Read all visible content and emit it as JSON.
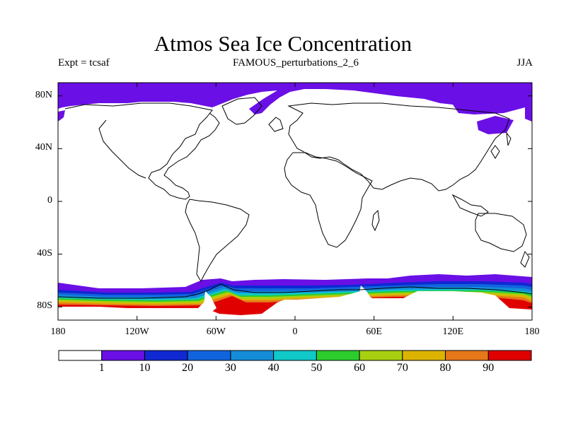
{
  "header": {
    "title": "Atmos Sea Ice Concentration",
    "experiment": "Expt = tcsaf",
    "run": "FAMOUS_perturbations_2_6",
    "season": "JJA"
  },
  "map": {
    "projection": "cylindrical-equidistant",
    "lon_range": [
      -180,
      180
    ],
    "lat_range": [
      -90,
      90
    ],
    "land_style": "white-with-black-coastlines",
    "lat_ticks": [
      {
        "value": 80,
        "label": "80N"
      },
      {
        "value": 40,
        "label": "40N"
      },
      {
        "value": 0,
        "label": "0"
      },
      {
        "value": -40,
        "label": "40S"
      },
      {
        "value": -80,
        "label": "80S"
      }
    ],
    "lon_ticks": [
      {
        "value": -180,
        "label": "180"
      },
      {
        "value": -120,
        "label": "120W"
      },
      {
        "value": -60,
        "label": "60W"
      },
      {
        "value": 0,
        "label": "0"
      },
      {
        "value": 60,
        "label": "60E"
      },
      {
        "value": 120,
        "label": "120E"
      },
      {
        "value": 180,
        "label": "180"
      }
    ]
  },
  "colorbar": {
    "levels": [
      1,
      10,
      20,
      30,
      40,
      50,
      60,
      70,
      80,
      90
    ],
    "colors": [
      "#ffffff",
      "#6a0fe6",
      "#0f28d2",
      "#1264de",
      "#148cd7",
      "#10c8c8",
      "#2ccc2c",
      "#a8d010",
      "#dcb400",
      "#e6781a",
      "#e00000"
    ]
  }
}
